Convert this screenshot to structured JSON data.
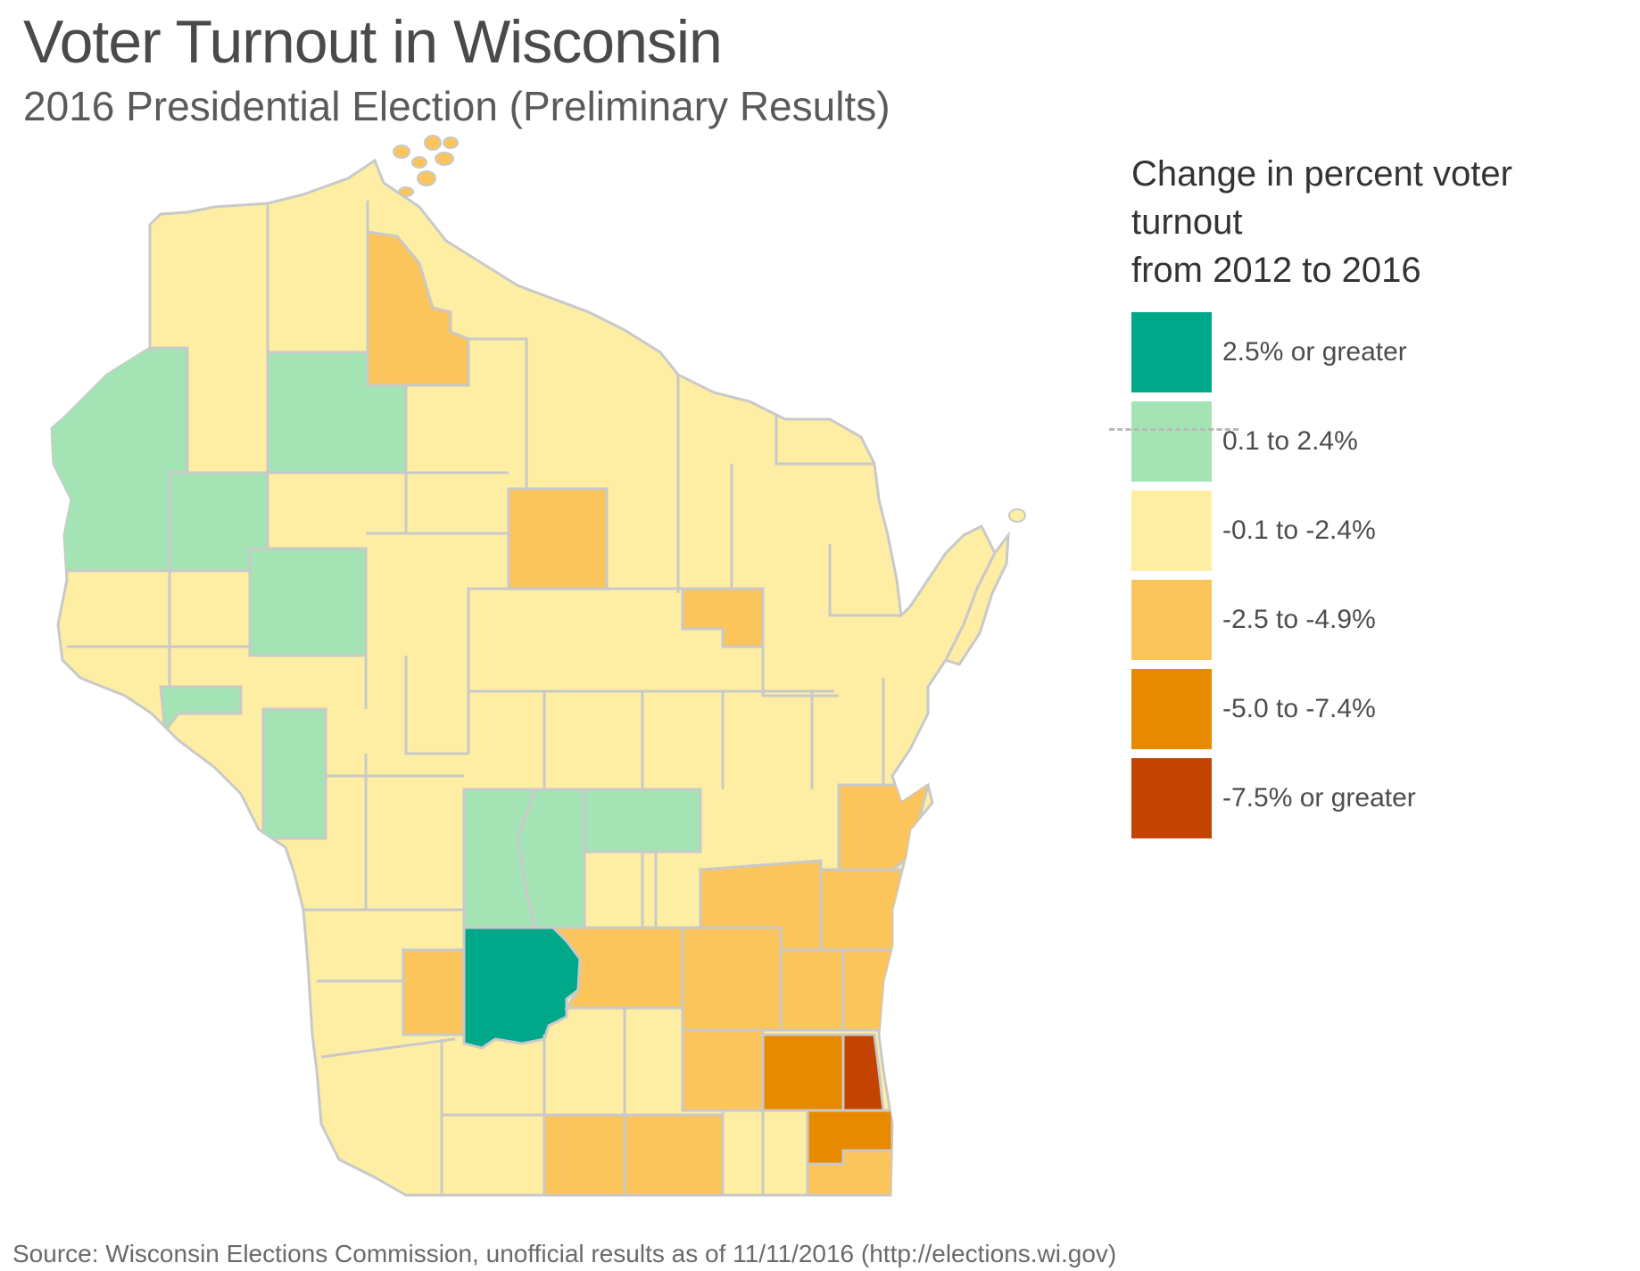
{
  "title": "Voter Turnout in Wisconsin",
  "subtitle": "2016 Presidential Election (Preliminary Results)",
  "legend": {
    "title_line1": "Change in percent voter turnout",
    "title_line2": "from 2012 to 2016",
    "items": [
      {
        "label": "2.5% or greater",
        "color": "#00a88a"
      },
      {
        "label": "0.1 to 2.4%",
        "color": "#a4e4b4"
      },
      {
        "label": "-0.1 to -2.4%",
        "color": "#fdeea4"
      },
      {
        "label": "-2.5 to -4.9%",
        "color": "#fcc55c"
      },
      {
        "label": "-5.0 to -7.4%",
        "color": "#e88a00"
      },
      {
        "label": "-7.5% or greater",
        "color": "#c24400"
      }
    ]
  },
  "colors": {
    "border": "#c9c9c9"
  },
  "source": "Source: Wisconsin Elections Commission, unofficial results as of 11/11/2016 (http://elections.wi.gov)"
}
